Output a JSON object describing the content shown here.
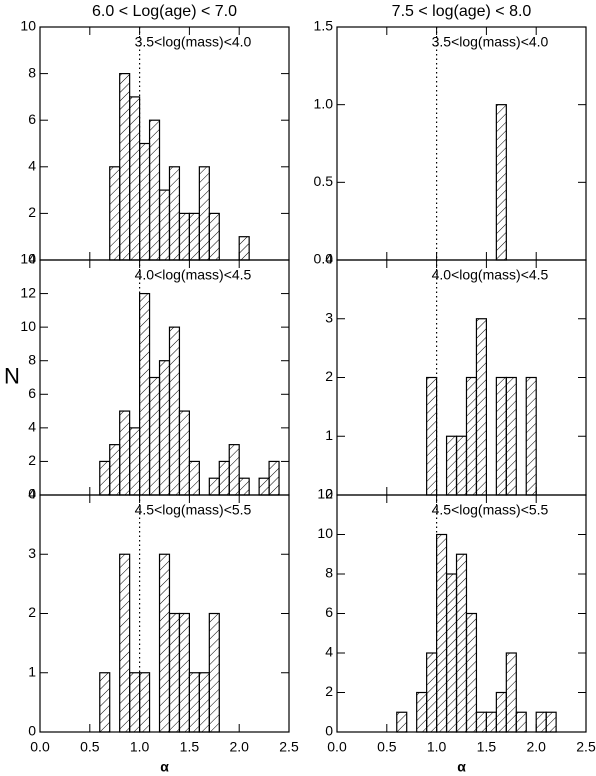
{
  "chart_data": [
    {
      "type": "histogram",
      "title": "6.0 < Log(age) < 7.0",
      "annotation": "3.5<log(mass)<4.0",
      "bins": [
        0.7,
        0.8,
        0.9,
        1.0,
        1.1,
        1.2,
        1.3,
        1.4,
        1.5,
        1.6,
        1.7,
        1.8,
        1.9,
        2.0,
        2.1
      ],
      "counts": [
        4,
        8,
        7,
        5,
        6,
        3,
        4,
        2,
        2,
        4,
        2,
        0,
        0,
        1
      ],
      "xlim": [
        0,
        2.5
      ],
      "ylim": [
        0,
        10
      ],
      "yticks": [
        0,
        2,
        4,
        6,
        8,
        10
      ],
      "vline": 1.0
    },
    {
      "type": "histogram",
      "title": "7.5 < log(age) < 8.0",
      "annotation": "3.5<log(mass)<4.0",
      "bins": [
        1.6,
        1.7
      ],
      "counts": [
        1
      ],
      "xlim": [
        0,
        2.5
      ],
      "ylim": [
        0,
        1.5
      ],
      "yticks": [
        {
          "value": 0,
          "label": "0.0"
        },
        {
          "value": 0.5,
          "label": "0.5"
        },
        {
          "value": 1,
          "label": "1.0"
        },
        {
          "value": 1.5,
          "label": "1.5"
        }
      ],
      "vline": 1.0
    },
    {
      "type": "histogram",
      "annotation": "4.0<log(mass)<4.5",
      "ylabel": "N",
      "bins": [
        0.6,
        0.7,
        0.8,
        0.9,
        1.0,
        1.1,
        1.2,
        1.3,
        1.4,
        1.5,
        1.6,
        1.7,
        1.8,
        1.9,
        2.0,
        2.1,
        2.2,
        2.3,
        2.4
      ],
      "counts": [
        2,
        3,
        5,
        4,
        12,
        7,
        8,
        10,
        5,
        2,
        0,
        1,
        2,
        3,
        1,
        0,
        1,
        2
      ],
      "xlim": [
        0,
        2.5
      ],
      "ylim": [
        0,
        14
      ],
      "yticks": [
        0,
        2,
        4,
        6,
        8,
        10,
        12,
        14
      ],
      "vline": 1.0
    },
    {
      "type": "histogram",
      "annotation": "4.0<log(mass)<4.5",
      "bins": [
        0.9,
        1.0,
        1.1,
        1.2,
        1.3,
        1.4,
        1.5,
        1.6,
        1.7,
        1.8,
        1.9,
        2.0
      ],
      "counts": [
        2,
        0,
        1,
        1,
        2,
        3,
        0,
        2,
        2,
        0,
        2
      ],
      "xlim": [
        0,
        2.5
      ],
      "ylim": [
        0,
        4
      ],
      "yticks": [
        0,
        1,
        2,
        3,
        4
      ],
      "vline": 1.0
    },
    {
      "type": "histogram",
      "annotation": "4.5<log(mass)<5.5",
      "xlabel": "α",
      "bins": [
        0.6,
        0.7,
        0.8,
        0.9,
        1.0,
        1.1,
        1.2,
        1.3,
        1.4,
        1.5,
        1.6,
        1.7,
        1.8
      ],
      "counts": [
        1,
        0,
        3,
        1,
        1,
        0,
        3,
        2,
        2,
        1,
        1,
        2
      ],
      "xlim": [
        0,
        2.5
      ],
      "ylim": [
        0,
        4
      ],
      "yticks": [
        0,
        1,
        2,
        3,
        4
      ],
      "xticks": [
        {
          "value": 0,
          "label": "0.0"
        },
        {
          "value": 0.5,
          "label": "0.5"
        },
        {
          "value": 1,
          "label": "1.0"
        },
        {
          "value": 1.5,
          "label": "1.5"
        },
        {
          "value": 2,
          "label": "2.0"
        },
        {
          "value": 2.5,
          "label": "2.5"
        }
      ],
      "vline": 1.0
    },
    {
      "type": "histogram",
      "annotation": "4.5<log(mass)<5.5",
      "xlabel": "α",
      "bins": [
        0.6,
        0.7,
        0.8,
        0.9,
        1.0,
        1.1,
        1.2,
        1.3,
        1.4,
        1.5,
        1.6,
        1.7,
        1.8,
        1.9,
        2.0,
        2.1,
        2.2
      ],
      "counts": [
        1,
        0,
        2,
        4,
        10,
        8,
        9,
        6,
        1,
        1,
        2,
        4,
        1,
        0,
        1,
        1
      ],
      "xlim": [
        0,
        2.5
      ],
      "ylim": [
        0,
        12
      ],
      "yticks": [
        0,
        2,
        4,
        6,
        8,
        10,
        12
      ],
      "xticks": [
        {
          "value": 0,
          "label": "0.0"
        },
        {
          "value": 0.5,
          "label": "0.5"
        },
        {
          "value": 1,
          "label": "1.0"
        },
        {
          "value": 1.5,
          "label": "1.5"
        },
        {
          "value": 2,
          "label": "2.0"
        },
        {
          "value": 2.5,
          "label": "2.5"
        }
      ],
      "vline": 1.0
    }
  ]
}
